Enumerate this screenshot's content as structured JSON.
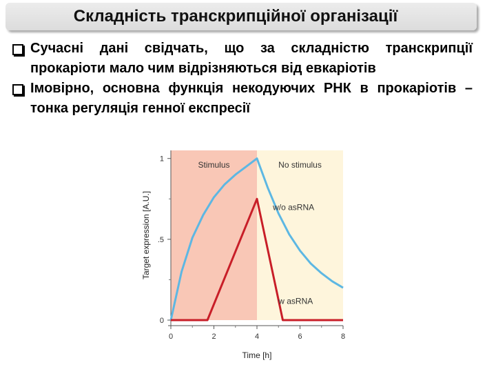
{
  "slide": {
    "title": "Складність транскрипційної організації",
    "bullets": [
      "Сучасні дані свідчать, що за складністю транскрипції прокаріоти мало чим відрізняються від евкаріотів",
      "Імовірно, основна функція некодуючих РНК в прокаріотів – тонка регуляція генної експресії"
    ]
  },
  "colors": {
    "stimulus_band": "#f9c7b6",
    "no_stimulus_band": "#fef5dc",
    "wo_asrna_line": "#5db7e3",
    "w_asrna_line": "#c81e28"
  },
  "chart_data": {
    "type": "line",
    "xlabel": "Time [h]",
    "ylabel": "Target expression [A.U.]",
    "xlim": [
      0,
      8
    ],
    "ylim": [
      0,
      1.05
    ],
    "x_ticks": [
      "0",
      "2",
      "4",
      "6",
      "8"
    ],
    "y_ticks": [
      {
        "value": 0,
        "label": "0"
      },
      {
        "value": 0.5,
        "label": ".5"
      },
      {
        "value": 1,
        "label": "1"
      }
    ],
    "regions": [
      {
        "label": "Stimulus",
        "from": 0,
        "to": 4
      },
      {
        "label": "No stimulus",
        "from": 4,
        "to": 8
      }
    ],
    "series": [
      {
        "name": "w/o asRNA",
        "x": [
          0,
          0.5,
          1,
          1.5,
          2,
          2.5,
          3,
          3.5,
          4,
          4.5,
          5,
          5.5,
          6,
          6.5,
          7,
          7.5,
          8
        ],
        "y": [
          0,
          0.3,
          0.51,
          0.65,
          0.76,
          0.84,
          0.9,
          0.95,
          1.0,
          0.82,
          0.66,
          0.53,
          0.43,
          0.35,
          0.29,
          0.24,
          0.2
        ]
      },
      {
        "name": "w asRNA",
        "x": [
          0,
          1.7,
          4,
          5.2,
          8
        ],
        "y": [
          0,
          0,
          0.75,
          0,
          0
        ]
      }
    ]
  }
}
